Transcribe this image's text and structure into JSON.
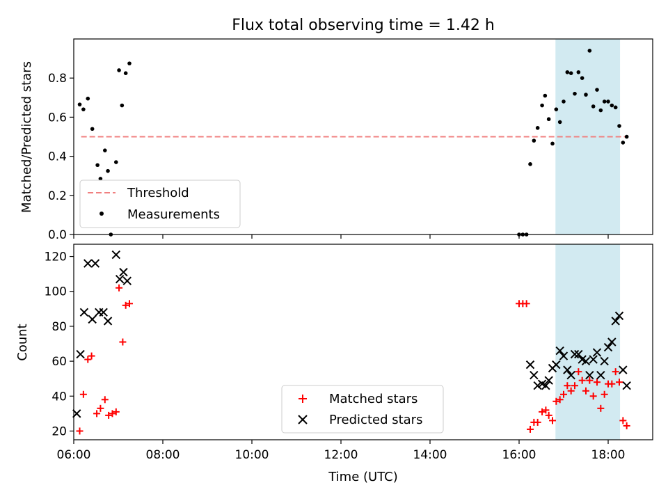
{
  "chart_data": [
    {
      "type": "scatter",
      "title": "Flux total observing time = 1.42 h",
      "xlabel": "",
      "ylabel": "Matched/Predicted stars",
      "xlim": [
        "06:00",
        "19:00"
      ],
      "ylim": [
        0,
        1.0
      ],
      "yticks": [
        "0.0",
        "0.2",
        "0.4",
        "0.6",
        "0.8"
      ],
      "grid": false,
      "legend_position": "lower-left",
      "highlight_span": {
        "x": [
          "16:49",
          "18:16"
        ],
        "color": "#add8e6"
      },
      "series": [
        {
          "name": "Threshold",
          "style": "dashed-line",
          "color": "#f08080",
          "points": [
            [
              "06:10",
              0.5
            ],
            [
              "18:27",
              0.5
            ]
          ]
        },
        {
          "name": "Measurements",
          "style": "dot",
          "color": "#000000",
          "points": [
            [
              "06:08",
              0.665
            ],
            [
              "06:13",
              0.64
            ],
            [
              "06:19",
              0.695
            ],
            [
              "06:25",
              0.54
            ],
            [
              "06:32",
              0.355
            ],
            [
              "06:36",
              0.285
            ],
            [
              "06:42",
              0.43
            ],
            [
              "06:46",
              0.325
            ],
            [
              "06:50",
              0.0
            ],
            [
              "06:57",
              0.37
            ],
            [
              "07:01",
              0.84
            ],
            [
              "07:05",
              0.66
            ],
            [
              "07:10",
              0.825
            ],
            [
              "07:15",
              0.875
            ],
            [
              "16:00",
              0.0
            ],
            [
              "16:05",
              0.0
            ],
            [
              "16:10",
              0.0
            ],
            [
              "16:15",
              0.36
            ],
            [
              "16:20",
              0.48
            ],
            [
              "16:25",
              0.545
            ],
            [
              "16:31",
              0.66
            ],
            [
              "16:35",
              0.71
            ],
            [
              "16:40",
              0.59
            ],
            [
              "16:45",
              0.465
            ],
            [
              "16:50",
              0.64
            ],
            [
              "16:55",
              0.575
            ],
            [
              "17:00",
              0.68
            ],
            [
              "17:05",
              0.83
            ],
            [
              "17:10",
              0.825
            ],
            [
              "17:15",
              0.72
            ],
            [
              "17:20",
              0.83
            ],
            [
              "17:25",
              0.8
            ],
            [
              "17:30",
              0.715
            ],
            [
              "17:35",
              0.94
            ],
            [
              "17:40",
              0.655
            ],
            [
              "17:45",
              0.74
            ],
            [
              "17:50",
              0.635
            ],
            [
              "17:55",
              0.68
            ],
            [
              "18:00",
              0.68
            ],
            [
              "18:05",
              0.66
            ],
            [
              "18:10",
              0.65
            ],
            [
              "18:15",
              0.555
            ],
            [
              "18:20",
              0.47
            ],
            [
              "18:25",
              0.5
            ]
          ]
        }
      ]
    },
    {
      "type": "scatter",
      "title": "",
      "xlabel": "Time (UTC)",
      "ylabel": "Count",
      "xlim": [
        "06:00",
        "19:00"
      ],
      "xticks": [
        "06:00",
        "08:00",
        "10:00",
        "12:00",
        "14:00",
        "16:00",
        "18:00"
      ],
      "ylim": [
        15,
        127
      ],
      "yticks": [
        "20",
        "40",
        "60",
        "80",
        "100",
        "120"
      ],
      "grid": false,
      "legend_position": "lower-center",
      "highlight_span": {
        "x": [
          "16:49",
          "18:16"
        ],
        "color": "#add8e6"
      },
      "series": [
        {
          "name": "Matched stars",
          "style": "plus",
          "color": "#ff0000",
          "points": [
            [
              "06:08",
              20
            ],
            [
              "06:13",
              41
            ],
            [
              "06:19",
              61
            ],
            [
              "06:24",
              63
            ],
            [
              "06:31",
              30
            ],
            [
              "06:36",
              33
            ],
            [
              "06:42",
              38
            ],
            [
              "06:47",
              29
            ],
            [
              "06:52",
              30
            ],
            [
              "06:57",
              31
            ],
            [
              "07:01",
              102
            ],
            [
              "07:06",
              71
            ],
            [
              "07:10",
              92
            ],
            [
              "07:15",
              93
            ],
            [
              "16:00",
              93
            ],
            [
              "16:05",
              93
            ],
            [
              "16:10",
              93
            ],
            [
              "16:15",
              21
            ],
            [
              "16:20",
              25
            ],
            [
              "16:25",
              25
            ],
            [
              "16:31",
              31
            ],
            [
              "16:36",
              32
            ],
            [
              "16:40",
              29
            ],
            [
              "16:45",
              26
            ],
            [
              "16:50",
              37
            ],
            [
              "16:55",
              38
            ],
            [
              "17:00",
              41
            ],
            [
              "17:05",
              46
            ],
            [
              "17:10",
              43
            ],
            [
              "17:15",
              46
            ],
            [
              "17:20",
              54
            ],
            [
              "17:25",
              49
            ],
            [
              "17:30",
              43
            ],
            [
              "17:35",
              49
            ],
            [
              "17:40",
              40
            ],
            [
              "17:45",
              48
            ],
            [
              "17:50",
              33
            ],
            [
              "17:55",
              41
            ],
            [
              "18:00",
              47
            ],
            [
              "18:05",
              47
            ],
            [
              "18:10",
              54
            ],
            [
              "18:15",
              48
            ],
            [
              "18:20",
              26
            ],
            [
              "18:25",
              23
            ]
          ]
        },
        {
          "name": "Predicted stars",
          "style": "x",
          "color": "#000000",
          "points": [
            [
              "06:04",
              30
            ],
            [
              "06:09",
              64
            ],
            [
              "06:14",
              88
            ],
            [
              "06:19",
              116
            ],
            [
              "06:25",
              84
            ],
            [
              "06:29",
              116
            ],
            [
              "06:34",
              88
            ],
            [
              "06:40",
              88
            ],
            [
              "06:46",
              83
            ],
            [
              "06:57",
              121
            ],
            [
              "07:02",
              107
            ],
            [
              "07:07",
              111
            ],
            [
              "07:12",
              106
            ],
            [
              "16:15",
              58
            ],
            [
              "16:20",
              52
            ],
            [
              "16:25",
              46
            ],
            [
              "16:31",
              47
            ],
            [
              "16:36",
              46
            ],
            [
              "16:40",
              49
            ],
            [
              "16:45",
              56
            ],
            [
              "16:50",
              58
            ],
            [
              "16:55",
              66
            ],
            [
              "17:00",
              63
            ],
            [
              "17:05",
              55
            ],
            [
              "17:10",
              52
            ],
            [
              "17:15",
              64
            ],
            [
              "17:20",
              64
            ],
            [
              "17:25",
              61
            ],
            [
              "17:30",
              60
            ],
            [
              "17:35",
              52
            ],
            [
              "17:40",
              61
            ],
            [
              "17:45",
              65
            ],
            [
              "17:50",
              52
            ],
            [
              "17:55",
              60
            ],
            [
              "18:00",
              68
            ],
            [
              "18:05",
              71
            ],
            [
              "18:10",
              83
            ],
            [
              "18:15",
              86
            ],
            [
              "18:20",
              55
            ],
            [
              "18:25",
              46
            ]
          ]
        }
      ]
    }
  ]
}
